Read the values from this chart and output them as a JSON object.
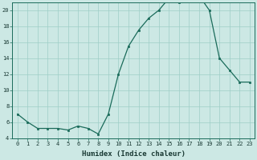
{
  "x": [
    0,
    1,
    2,
    3,
    4,
    5,
    6,
    7,
    8,
    9,
    10,
    11,
    12,
    13,
    14,
    15,
    16,
    17,
    18,
    19,
    20,
    21,
    22,
    23
  ],
  "y": [
    7,
    6,
    5.2,
    5.2,
    5.2,
    5.0,
    5.5,
    5.2,
    4.5,
    7.0,
    12.0,
    15.5,
    17.5,
    19.0,
    20.0,
    21.5,
    21.0,
    21.5,
    21.8,
    20.0,
    14.0,
    12.5,
    11.0,
    11.0
  ],
  "line_color": "#1a6b5a",
  "marker_color": "#1a6b5a",
  "bg_color": "#cce8e4",
  "grid_color": "#9ecdc7",
  "xlabel": "Humidex (Indice chaleur)",
  "ylim": [
    4,
    21
  ],
  "xlim": [
    -0.5,
    23.5
  ],
  "yticks": [
    4,
    6,
    8,
    10,
    12,
    14,
    16,
    18,
    20
  ],
  "xticks": [
    0,
    1,
    2,
    3,
    4,
    5,
    6,
    7,
    8,
    9,
    10,
    11,
    12,
    13,
    14,
    15,
    16,
    17,
    18,
    19,
    20,
    21,
    22,
    23
  ],
  "label_fontsize": 6.5,
  "tick_fontsize": 5.0,
  "xlabel_fontsize": 6.5
}
